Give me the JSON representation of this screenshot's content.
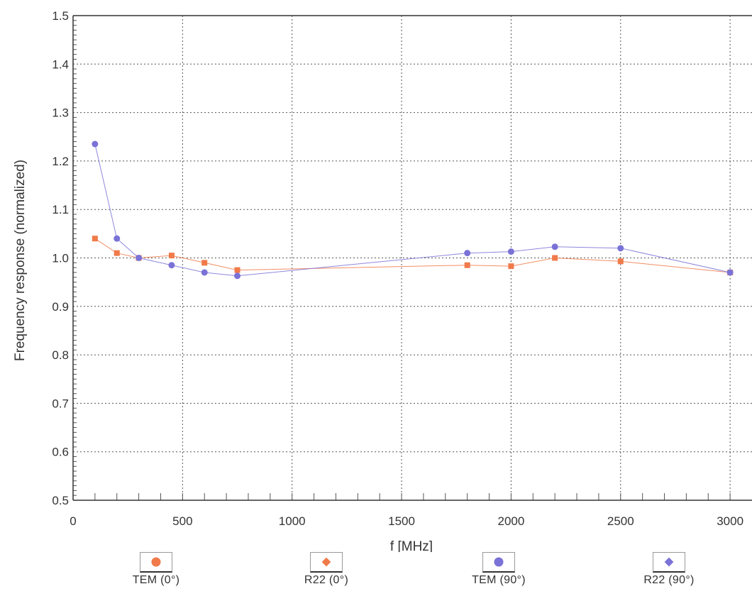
{
  "chart_data": {
    "type": "line",
    "xlabel": "f [MHz]",
    "ylabel": "Frequency response (normalized)",
    "xlim": [
      0,
      3100
    ],
    "ylim": [
      0.5,
      1.5
    ],
    "x_ticks": [
      0,
      500,
      1000,
      1500,
      2000,
      2500,
      3000
    ],
    "y_ticks": [
      0.5,
      0.6,
      0.7,
      0.8,
      0.9,
      1.0,
      1.1,
      1.2,
      1.3,
      1.4,
      1.5
    ],
    "x_tick_labels": [
      "0",
      "500",
      "1000",
      "1500",
      "2000",
      "2500",
      "3000"
    ],
    "y_tick_labels": [
      "0.5",
      "0.6",
      "0.7",
      "0.8",
      "0.9",
      "1.0",
      "1.1",
      "1.2",
      "1.3",
      "1.4",
      "1.5"
    ],
    "grid": true,
    "legend_position": "bottom",
    "series": [
      {
        "name": "TEM (0°)",
        "color": "#f07a4a",
        "marker": "square",
        "x": [
          100,
          200,
          300,
          450,
          600,
          750,
          1800,
          2000,
          2200,
          2500,
          3000
        ],
        "y": [
          1.04,
          1.01,
          1.0,
          1.005,
          0.99,
          0.975,
          0.985,
          0.983,
          1.0,
          0.993,
          0.97
        ]
      },
      {
        "name": "TEM (90°)",
        "color": "#7a72d6",
        "marker": "circle",
        "x": [
          100,
          200,
          300,
          450,
          600,
          750,
          1800,
          2000,
          2200,
          2500,
          3000
        ],
        "y": [
          1.235,
          1.04,
          1.0,
          0.985,
          0.97,
          0.963,
          1.01,
          1.013,
          1.023,
          1.02,
          0.97
        ]
      }
    ]
  },
  "legend": [
    {
      "label": "TEM (0°)",
      "color": "#f07a4a",
      "marker": "circle"
    },
    {
      "label": "R22 (0°)",
      "color": "#f07a4a",
      "marker": "diamond"
    },
    {
      "label": "TEM (90°)",
      "color": "#7a72d6",
      "marker": "circle"
    },
    {
      "label": "R22 (90°)",
      "color": "#7a72d6",
      "marker": "diamond"
    }
  ]
}
